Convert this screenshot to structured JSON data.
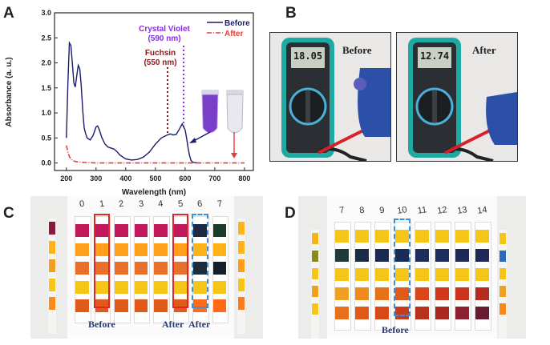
{
  "panels": {
    "a": "A",
    "b": "B",
    "c": "C",
    "d": "D"
  },
  "chart_data": {
    "type": "line",
    "xlabel": "Wavelength (nm)",
    "ylabel": "Absorbance (a. u.)",
    "xlim": [
      160,
      830
    ],
    "ylim": [
      -0.15,
      3.0
    ],
    "xticks": [
      "200",
      "300",
      "400",
      "500",
      "600",
      "700",
      "800"
    ],
    "xtick_values": [
      200,
      300,
      400,
      500,
      600,
      700,
      800
    ],
    "yticks": [
      "0.0",
      "0.5",
      "1.0",
      "1.5",
      "2.0",
      "2.5",
      "3.0"
    ],
    "ytick_values": [
      0,
      0.5,
      1.0,
      1.5,
      2.0,
      2.5,
      3.0
    ],
    "legend": [
      {
        "name": "Before",
        "color": "#1a1a6e",
        "style": "solid"
      },
      {
        "name": "After",
        "color": "#e0403a",
        "style": "dash-dot"
      }
    ],
    "series": [
      {
        "name": "Before",
        "color": "#1a1a6e",
        "x": [
          200,
          205,
          210,
          215,
          220,
          225,
          230,
          235,
          240,
          245,
          250,
          255,
          260,
          265,
          270,
          280,
          290,
          300,
          305,
          310,
          320,
          330,
          340,
          350,
          360,
          370,
          380,
          400,
          420,
          440,
          460,
          480,
          500,
          520,
          540,
          550,
          560,
          570,
          580,
          590,
          600,
          605,
          610,
          615,
          620,
          625,
          630,
          640,
          650
        ],
        "y": [
          0.5,
          1.6,
          2.4,
          2.35,
          2.0,
          1.6,
          1.52,
          1.75,
          1.95,
          1.88,
          1.55,
          1.05,
          0.7,
          0.58,
          0.5,
          0.46,
          0.55,
          0.72,
          0.74,
          0.68,
          0.5,
          0.38,
          0.32,
          0.3,
          0.28,
          0.23,
          0.16,
          0.08,
          0.06,
          0.07,
          0.12,
          0.22,
          0.38,
          0.5,
          0.56,
          0.58,
          0.56,
          0.57,
          0.67,
          0.78,
          0.66,
          0.5,
          0.3,
          0.15,
          0.05,
          0.02,
          0.01,
          0.0,
          0.0
        ]
      },
      {
        "name": "After",
        "color": "#e0403a",
        "x": [
          200,
          205,
          210,
          215,
          220,
          230,
          240,
          260,
          300,
          400,
          500,
          600,
          700,
          800
        ],
        "y": [
          0.35,
          0.22,
          0.13,
          0.08,
          0.05,
          0.03,
          0.02,
          0.01,
          0.0,
          0.0,
          0.0,
          0.0,
          0.0,
          0.0
        ]
      }
    ],
    "annotations": [
      {
        "text1": "Crystal Violet",
        "text2": "(590 nm)",
        "color": "#8a2be2",
        "x": 590
      },
      {
        "text1": "Fuchsin",
        "text2": "(550 nm)",
        "color": "#8b1a1a",
        "x": 550
      }
    ]
  },
  "panel_b": {
    "before": "Before",
    "after": "After",
    "reading_before": "18.05",
    "reading_after": "12.74"
  },
  "panel_c": {
    "numbers": [
      "0",
      "1",
      "2",
      "3",
      "4",
      "5",
      "6",
      "7"
    ],
    "label_before": "Before",
    "label_after1": "After",
    "label_after2": "After",
    "rows": [
      [
        "#c2185b",
        "#c2185b",
        "#c2185b",
        "#c2185b",
        "#c2185b",
        "#c2185b",
        "#1e2a44",
        "#1a3a2a"
      ],
      [
        "#ff9f1a",
        "#ff9f1a",
        "#ff9f1a",
        "#ff9f1a",
        "#ff9f1a",
        "#ff9f1a",
        "#ffb21a",
        "#ffb21a"
      ],
      [
        "#e8702a",
        "#e8702a",
        "#e8702a",
        "#e8702a",
        "#e8702a",
        "#e8702a",
        "#1d2b3d",
        "#15202a"
      ],
      [
        "#f5c518",
        "#f5c518",
        "#f5c518",
        "#f5c518",
        "#f5c518",
        "#f5c518",
        "#f5c518",
        "#f5c518"
      ],
      [
        "#e05a1a",
        "#e05a1a",
        "#e05a1a",
        "#e05a1a",
        "#e05a1a",
        "#e05a1a",
        "#ff6a1a",
        "#ff6a1a"
      ]
    ],
    "left_strip": [
      "#8b1a3a",
      "#ffb21a",
      "#f0a020",
      "#f5c518",
      "#ff8a1a"
    ],
    "right_strip": [
      "#ffb21a",
      "#ffb21a",
      "#ff9a1a",
      "#f5c518",
      "#ff7a1a"
    ]
  },
  "panel_d": {
    "numbers": [
      "7",
      "8",
      "9",
      "10",
      "11",
      "12",
      "13",
      "14"
    ],
    "label_before": "Before",
    "rows": [
      [
        "#f5c518",
        "#f5c518",
        "#f5c518",
        "#f5c518",
        "#f5c518",
        "#f5c518",
        "#f5c518",
        "#f5c518"
      ],
      [
        "#1f3a3a",
        "#1b2b44",
        "#1b2b4f",
        "#1b2b55",
        "#1d2e5a",
        "#1d2e5a",
        "#1c2a55",
        "#1c2a55"
      ],
      [
        "#f5c518",
        "#f5c518",
        "#f5c518",
        "#f5c518",
        "#f5c518",
        "#f5c518",
        "#f5c518",
        "#f5c518"
      ],
      [
        "#f0a020",
        "#f08a1a",
        "#e8701a",
        "#e05a1a",
        "#d8471a",
        "#d03a1a",
        "#c8341e",
        "#b82a1e"
      ],
      [
        "#e8701a",
        "#e0581a",
        "#d84818",
        "#c83a1e",
        "#b8301e",
        "#a8281e",
        "#8a2030",
        "#6a1a30"
      ]
    ],
    "left_strip": [
      "#f5b21a",
      "#8a8a20",
      "#f5c518",
      "#f0a020",
      "#f5c518"
    ],
    "right_strip": [
      "#f5c518",
      "#2a6ab8",
      "#f5c518",
      "#f0a020",
      "#f58a1a"
    ]
  }
}
